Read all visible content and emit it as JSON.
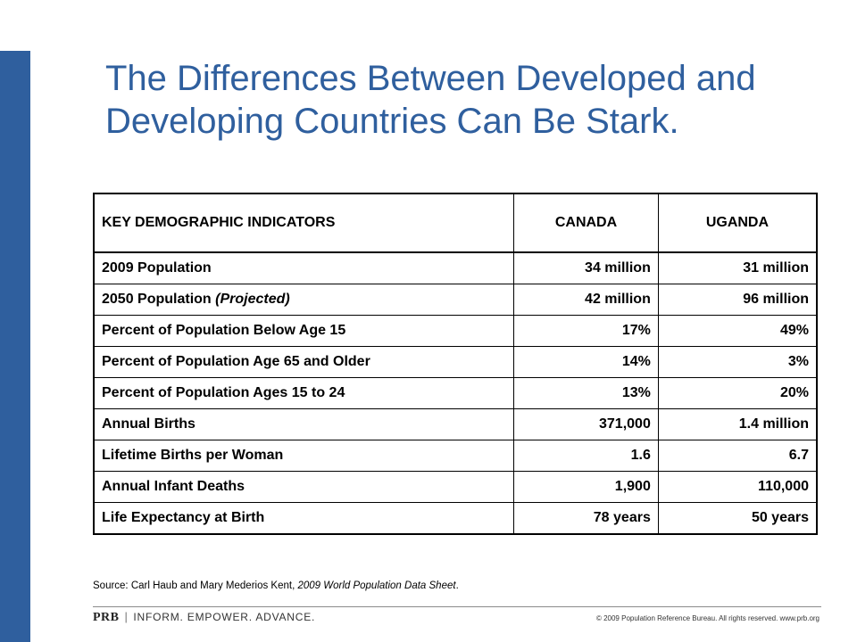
{
  "slide": {
    "title_line1": "The Differences Between Developed and",
    "title_line2": "Developing Countries Can Be Stark."
  },
  "table": {
    "headers": [
      "KEY DEMOGRAPHIC INDICATORS",
      "CANADA",
      "UGANDA"
    ],
    "rows": [
      {
        "indicator": "2009 Population",
        "note": "",
        "canada": "34 million",
        "uganda": "31 million"
      },
      {
        "indicator": "2050 Population ",
        "note": "(Projected)",
        "canada": "42 million",
        "uganda": "96 million"
      },
      {
        "indicator": "Percent of Population Below Age 15",
        "note": "",
        "canada": "17%",
        "uganda": "49%"
      },
      {
        "indicator": "Percent of Population Age 65 and Older",
        "note": "",
        "canada": "14%",
        "uganda": "3%"
      },
      {
        "indicator": "Percent of Population Ages 15 to 24",
        "note": "",
        "canada": "13%",
        "uganda": "20%"
      },
      {
        "indicator": "Annual Births",
        "note": "",
        "canada": "371,000",
        "uganda": "1.4 million"
      },
      {
        "indicator": "Lifetime Births per Woman",
        "note": "",
        "canada": "1.6",
        "uganda": "6.7"
      },
      {
        "indicator": "Annual Infant Deaths",
        "note": "",
        "canada": "1,900",
        "uganda": "110,000"
      },
      {
        "indicator": "Life Expectancy at Birth",
        "note": "",
        "canada": "78 years",
        "uganda": "50 years"
      }
    ]
  },
  "source": {
    "prefix": "Source: Carl Haub and Mary Mederios Kent, ",
    "publication": "2009 World Population Data Sheet",
    "suffix": "."
  },
  "footer": {
    "brand": "PRB",
    "separator": "|",
    "tagline": "INFORM. EMPOWER. ADVANCE.",
    "copyright": "© 2009 Population Reference Bureau. All rights reserved. www.prb.org"
  },
  "colors": {
    "accent": "#2f5f9e"
  }
}
